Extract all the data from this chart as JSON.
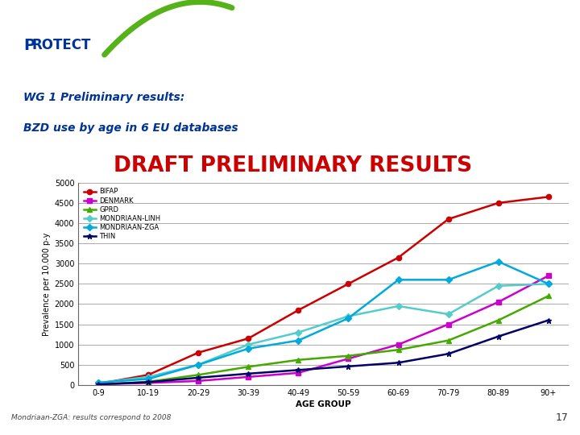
{
  "age_groups": [
    "0-9",
    "10-19",
    "20-29",
    "30-39",
    "40-49",
    "50-59",
    "60-69",
    "70-79",
    "80-89",
    "90+"
  ],
  "series": {
    "BIFAP": {
      "values": [
        30,
        250,
        800,
        1150,
        1850,
        2500,
        3150,
        4100,
        4500,
        4650
      ],
      "color": "#cc0000",
      "marker": "o",
      "linewidth": 1.8
    },
    "DENMARK": {
      "values": [
        20,
        50,
        100,
        200,
        300,
        650,
        1000,
        1500,
        2050,
        2700
      ],
      "color": "#cc00cc",
      "marker": "s",
      "linewidth": 1.8
    },
    "GPRD": {
      "values": [
        10,
        80,
        250,
        450,
        620,
        720,
        870,
        1100,
        1600,
        2200
      ],
      "color": "#44aa00",
      "marker": "^",
      "linewidth": 1.8
    },
    "MONDRIAAN-LINH": {
      "values": [
        50,
        200,
        500,
        1000,
        1300,
        1700,
        1950,
        1750,
        2450,
        2500
      ],
      "color": "#55cccc",
      "marker": "D",
      "linewidth": 1.8
    },
    "MONDRIAAN-ZGA": {
      "values": [
        60,
        150,
        500,
        900,
        1100,
        1650,
        2600,
        2600,
        3050,
        2500
      ],
      "color": "#00aadd",
      "marker": "D",
      "linewidth": 1.8
    },
    "THIN": {
      "values": [
        15,
        70,
        180,
        280,
        370,
        460,
        550,
        770,
        1200,
        1600
      ],
      "color": "#000066",
      "marker": "*",
      "linewidth": 1.8
    }
  },
  "series_order": [
    "BIFAP",
    "DENMARK",
    "GPRD",
    "MONDRIAAN-LINH",
    "MONDRIAAN-ZGA",
    "THIN"
  ],
  "ylabel": "Prevalence per 10.000 p-y",
  "xlabel": "AGE GROUP",
  "ylim": [
    0,
    5000
  ],
  "yticks": [
    0,
    500,
    1000,
    1500,
    2000,
    2500,
    3000,
    3500,
    4000,
    4500,
    5000
  ],
  "title_line1": "WG 1 Preliminary results:",
  "title_line2": "BZD use by age in 6 EU databases",
  "draft_text": "DRAFT PRELIMINARY RESULTS",
  "footnote": "Mondriaan-ZGA: results correspond to 2008",
  "page_number": "17",
  "bg_color": "#ffffff",
  "grid_color": "#aaaaaa",
  "header_bg": "#ddeef8",
  "title_color": "#003399",
  "draft_color": "#cc0000",
  "separator_color": "#003399",
  "protect_color": "#003399"
}
